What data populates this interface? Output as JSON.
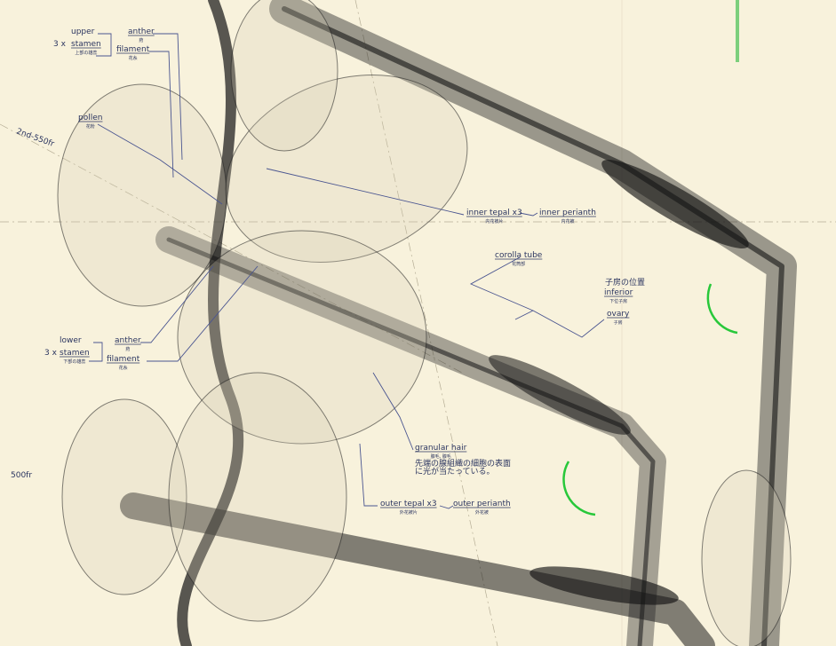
{
  "frame_labels": [
    "2nd-550fr",
    "500fr"
  ],
  "labels": [
    {
      "text": "upper"
    },
    {
      "text": "3 x"
    },
    {
      "text": "stamen",
      "sub": "上部の雄蕊"
    },
    {
      "text": "anther",
      "sub": "葯"
    },
    {
      "text": "filament",
      "sub": "花糸"
    },
    {
      "text": "pollen",
      "sub": "花粉"
    },
    {
      "text": "inner tepal x3",
      "sub": "内花被片"
    },
    {
      "text": "inner perianth",
      "sub": "内花被"
    },
    {
      "text": "corolla tube",
      "sub": "花筒部"
    },
    {
      "text": "子房の位置"
    },
    {
      "text": "inferior",
      "sub": "下位子房"
    },
    {
      "text": "ovary",
      "sub": "子房"
    },
    {
      "text": "lower"
    },
    {
      "text": "3 x"
    },
    {
      "text": "stamen",
      "sub": "下部の雄蕊"
    },
    {
      "text": "anther",
      "sub": "葯"
    },
    {
      "text": "filament",
      "sub": "花糸"
    },
    {
      "text": "granular hair",
      "sub": "腺毛, 腺毛"
    },
    {
      "text": "先端の腺組織の細胞の表面"
    },
    {
      "text": "に光が当たっている。"
    },
    {
      "text": "outer tepal x3",
      "sub": "外花被片"
    },
    {
      "text": "outer perianth",
      "sub": "外花被"
    }
  ]
}
